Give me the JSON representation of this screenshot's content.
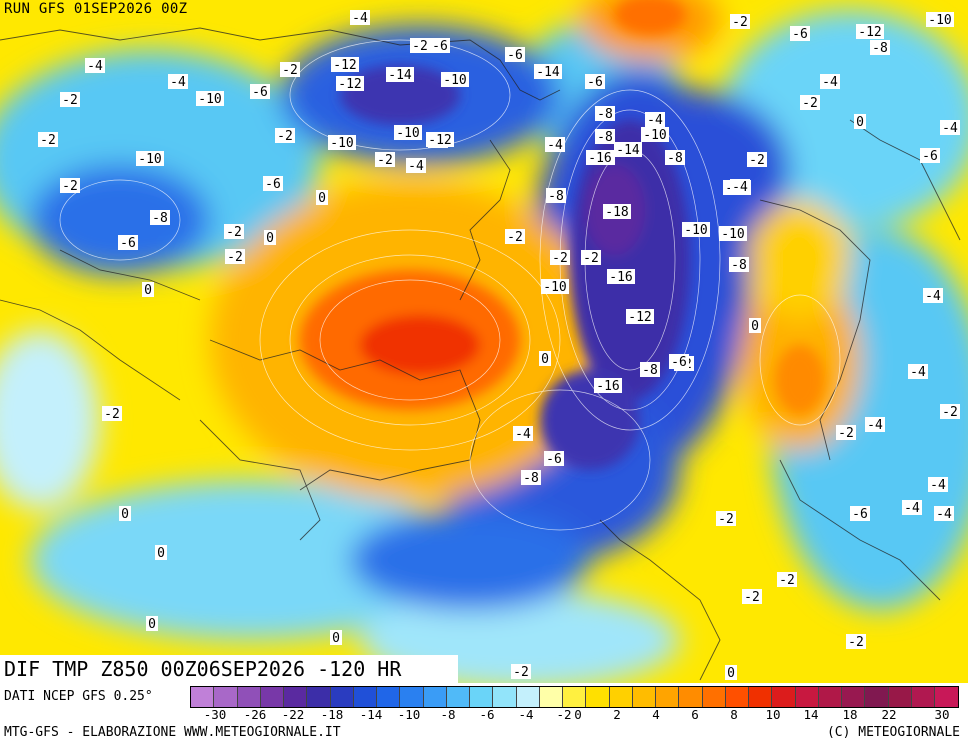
{
  "header": {
    "run_label": "RUN GFS 01SEP2026 00Z",
    "main_title": "DIF TMP Z850 00Z06SEP2026 -120 HR"
  },
  "footer": {
    "source": "DATI NCEP GFS 0.25°",
    "credit_left": "MTG-GFS - ELABORAZIONE WWW.METEOGIORNALE.IT",
    "credit_right": "(C) METEOGIORNALE"
  },
  "legend": {
    "tick_labels": [
      "-30",
      "-26",
      "-22",
      "-18",
      "-14",
      "-10",
      "-8",
      "-6",
      "-4",
      "-2",
      "0",
      "2",
      "4",
      "6",
      "8",
      "10",
      "14",
      "18",
      "22",
      "30"
    ],
    "colors": [
      "#c080d8",
      "#a868c8",
      "#9050b8",
      "#7838a8",
      "#5a2aa0",
      "#3c2ea8",
      "#2a3cc0",
      "#2050d8",
      "#2066e8",
      "#2a80f0",
      "#3a9cf6",
      "#50baf8",
      "#6ad4f8",
      "#92e4fa",
      "#c4f0fc",
      "#ffffa8",
      "#fff040",
      "#ffe000",
      "#ffd000",
      "#ffbc00",
      "#ffa400",
      "#ff8c00",
      "#ff7000",
      "#ff5000",
      "#f03000",
      "#dc1c1c",
      "#c81840",
      "#b01848",
      "#981850",
      "#801850",
      "#981848",
      "#b01850",
      "#c81858"
    ]
  },
  "map": {
    "iso_labels": [
      "-4",
      "-2",
      "-12",
      "-10",
      "-6",
      "-8",
      "-6",
      "-2",
      "-6",
      "-12",
      "-10",
      "-14",
      "-4",
      "-2",
      "-12",
      "-4",
      "-6",
      "-10",
      "-8",
      "-4",
      "-6",
      "-14",
      "-8",
      "-10",
      "-4",
      "-2",
      "0",
      "-2",
      "-4",
      "-2",
      "0",
      "-4",
      "-4",
      "-6",
      "-10",
      "-2",
      "-2",
      "-2",
      "-16",
      "-18",
      "-12",
      "-10",
      "-8",
      "-14",
      "-16",
      "-12",
      "-2",
      "-2",
      "0",
      "-10",
      "-2",
      "-16",
      "-8",
      "-10",
      "-8",
      "-6",
      "-10",
      "-4",
      "-8",
      "-6",
      "-2",
      "-10",
      "-2",
      "-4",
      "-6",
      "-8",
      "-10",
      "0",
      "-8",
      "-6",
      "-4",
      "-2",
      "0",
      "-2",
      "0",
      "-2",
      "-4",
      "0",
      "-2",
      "0",
      "-2",
      "-6",
      "-4",
      "-2",
      "0",
      "-4",
      "-2",
      "-4",
      "-4",
      "-2",
      "-6",
      "-4",
      "-2",
      "-2",
      "0",
      "0",
      "-2",
      "-2",
      "0"
    ]
  }
}
